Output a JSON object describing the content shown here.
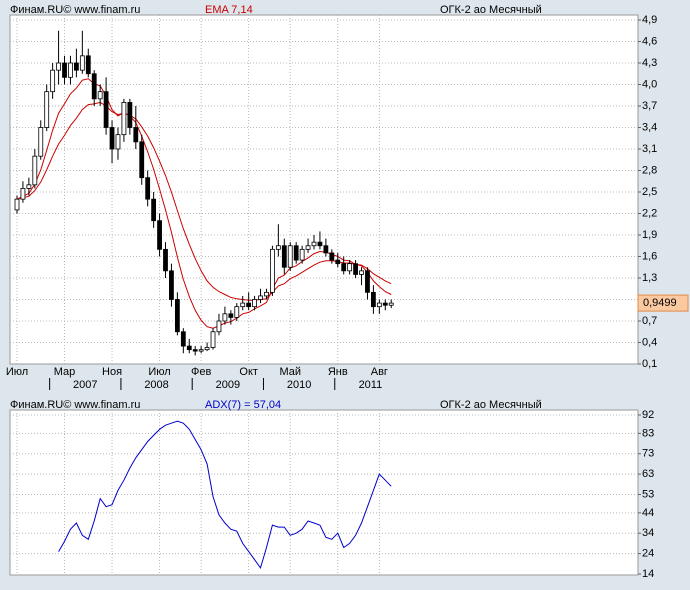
{
  "chart_data": [
    {
      "type": "candlestick",
      "source": "Финам.RU©  www.finam.ru",
      "indicator": "EMA 7,14",
      "instrument": "ОГК-2 ао Месячный",
      "categories": [
        "Июл",
        null,
        null,
        null,
        null,
        null,
        null,
        null,
        "Мар",
        null,
        null,
        null,
        null,
        null,
        null,
        null,
        "Ноя",
        null,
        null,
        null,
        null,
        null,
        null,
        null,
        "Июл",
        null,
        null,
        null,
        null,
        null,
        null,
        "Фев",
        null,
        null,
        null,
        null,
        null,
        null,
        null,
        "Окт",
        null,
        null,
        null,
        null,
        null,
        null,
        "Май",
        null,
        null,
        null,
        null,
        null,
        null,
        null,
        "Янв",
        null,
        null,
        null,
        null,
        null,
        null,
        "Авг",
        null,
        null
      ],
      "years": [
        "2007",
        "2008",
        "2009",
        "2010",
        "2011"
      ],
      "open": [
        2.25,
        2.4,
        2.55,
        2.6,
        3.0,
        3.4,
        3.9,
        4.2,
        4.3,
        4.1,
        4.3,
        4.2,
        4.4,
        4.15,
        3.8,
        3.9,
        3.4,
        3.1,
        3.3,
        3.75,
        3.4,
        3.2,
        2.7,
        2.4,
        2.1,
        1.7,
        1.4,
        1.0,
        0.55,
        0.35,
        0.3,
        0.28,
        0.3,
        0.33,
        0.55,
        0.7,
        0.8,
        0.75,
        0.9,
        0.95,
        0.9,
        1.0,
        1.05,
        1.1,
        1.7,
        1.75,
        1.45,
        1.75,
        1.55,
        1.7,
        1.75,
        1.8,
        1.75,
        1.65,
        1.55,
        1.5,
        1.4,
        1.5,
        1.35,
        1.4,
        1.1,
        0.9,
        0.95,
        0.92
      ],
      "high": [
        2.45,
        2.65,
        2.7,
        3.1,
        3.5,
        4.0,
        4.3,
        4.75,
        4.4,
        4.4,
        4.5,
        4.75,
        4.5,
        4.2,
        4.0,
        4.1,
        3.5,
        3.4,
        3.8,
        3.8,
        3.7,
        3.3,
        2.8,
        2.5,
        2.2,
        1.8,
        1.5,
        1.1,
        0.6,
        0.45,
        0.35,
        0.35,
        0.4,
        0.6,
        0.8,
        0.9,
        0.85,
        0.95,
        1.05,
        1.1,
        1.05,
        1.15,
        1.15,
        1.75,
        2.05,
        1.85,
        1.8,
        1.8,
        1.75,
        1.85,
        1.9,
        1.95,
        1.85,
        1.7,
        1.65,
        1.6,
        1.55,
        1.55,
        1.45,
        1.45,
        1.2,
        1.0,
        1.0,
        1.0
      ],
      "low": [
        2.2,
        2.35,
        2.45,
        2.55,
        2.95,
        3.35,
        3.8,
        4.0,
        4.0,
        4.0,
        4.1,
        4.15,
        4.1,
        3.7,
        3.7,
        3.3,
        2.9,
        2.95,
        3.2,
        3.3,
        3.1,
        2.6,
        2.3,
        2.0,
        1.6,
        1.3,
        0.9,
        0.5,
        0.25,
        0.25,
        0.22,
        0.25,
        0.28,
        0.3,
        0.5,
        0.65,
        0.65,
        0.7,
        0.85,
        0.85,
        0.85,
        0.95,
        1.0,
        1.05,
        1.6,
        1.35,
        1.4,
        1.5,
        1.5,
        1.65,
        1.7,
        1.7,
        1.6,
        1.5,
        1.45,
        1.35,
        1.35,
        1.3,
        1.2,
        1.0,
        0.8,
        0.8,
        0.85,
        0.88
      ],
      "close": [
        2.4,
        2.55,
        2.6,
        3.0,
        3.4,
        3.9,
        4.2,
        4.3,
        4.1,
        4.3,
        4.2,
        4.4,
        4.15,
        3.8,
        3.9,
        3.4,
        3.1,
        3.3,
        3.75,
        3.4,
        3.2,
        2.7,
        2.4,
        2.1,
        1.7,
        1.4,
        1.0,
        0.55,
        0.35,
        0.3,
        0.28,
        0.3,
        0.33,
        0.55,
        0.7,
        0.8,
        0.75,
        0.9,
        0.95,
        0.9,
        1.0,
        1.05,
        1.1,
        1.7,
        1.75,
        1.45,
        1.75,
        1.55,
        1.7,
        1.75,
        1.8,
        1.75,
        1.65,
        1.55,
        1.5,
        1.4,
        1.5,
        1.35,
        1.4,
        1.1,
        0.9,
        0.95,
        0.92,
        0.9499
      ],
      "last_label": "0,9499",
      "color_up": "#ffffff",
      "color_down": "#000000",
      "series": [
        {
          "color": "#cc0000",
          "values": [
            2.4,
            2.44,
            2.48,
            2.61,
            2.81,
            3.08,
            3.36,
            3.6,
            3.73,
            3.87,
            3.95,
            4.06,
            4.08,
            4.01,
            3.98,
            3.84,
            3.65,
            3.56,
            3.61,
            3.56,
            3.47,
            3.28,
            3.06,
            2.82,
            2.54,
            2.25,
            1.94,
            1.59,
            1.28,
            1.04,
            0.85,
            0.71,
            0.62,
            0.6,
            0.63,
            0.67,
            0.69,
            0.74,
            0.8,
            0.82,
            0.87,
            0.91,
            0.96,
            1.15,
            1.3,
            1.34,
            1.44,
            1.47,
            1.53,
            1.58,
            1.64,
            1.67,
            1.66,
            1.63,
            1.6,
            1.55,
            1.54,
            1.49,
            1.47,
            1.38,
            1.26,
            1.18,
            1.11,
            1.07
          ]
        },
        {
          "color": "#cc0000",
          "values": [
            2.4,
            2.42,
            2.44,
            2.52,
            2.64,
            2.81,
            3.0,
            3.17,
            3.29,
            3.43,
            3.53,
            3.65,
            3.72,
            3.73,
            3.75,
            3.7,
            3.62,
            3.58,
            3.6,
            3.57,
            3.52,
            3.41,
            3.28,
            3.12,
            2.93,
            2.73,
            2.5,
            2.24,
            1.99,
            1.77,
            1.57,
            1.4,
            1.26,
            1.17,
            1.11,
            1.07,
            1.03,
            1.01,
            1.0,
            0.99,
            0.99,
            1.0,
            1.01,
            1.1,
            1.19,
            1.22,
            1.29,
            1.33,
            1.38,
            1.43,
            1.48,
            1.52,
            1.54,
            1.54,
            1.53,
            1.51,
            1.51,
            1.49,
            1.48,
            1.43,
            1.36,
            1.31,
            1.26,
            1.22
          ]
        }
      ],
      "ylim": [
        0.1,
        4.9
      ],
      "yticks": [
        {
          "value": 4.9,
          "label": "4,9"
        },
        {
          "value": 4.6,
          "label": "4,6"
        },
        {
          "value": 4.3,
          "label": "4,3"
        },
        {
          "value": 4.0,
          "label": "4,0"
        },
        {
          "value": 3.7,
          "label": "3,7"
        },
        {
          "value": 3.4,
          "label": "3,4"
        },
        {
          "value": 3.1,
          "label": "3,1"
        },
        {
          "value": 2.8,
          "label": "2,8"
        },
        {
          "value": 2.5,
          "label": "2,5"
        },
        {
          "value": 2.2,
          "label": "2,2"
        },
        {
          "value": 1.9,
          "label": "1,9"
        },
        {
          "value": 1.6,
          "label": "1,6"
        },
        {
          "value": 1.3,
          "label": "1,3"
        },
        {
          "value": 1.0,
          "label": "1,0"
        },
        {
          "value": 0.7,
          "label": "0,7"
        },
        {
          "value": 0.4,
          "label": "0,4"
        },
        {
          "value": 0.1,
          "label": "0,1"
        }
      ],
      "grid": true
    },
    {
      "type": "line",
      "source": "Финам.RU©  www.finam.ru",
      "indicator": "ADX(7) = 57,04",
      "instrument": "ОГК-2 ао Месячный",
      "series": [
        {
          "color": "#0000cc",
          "values": [
            null,
            null,
            null,
            null,
            null,
            null,
            null,
            25,
            30,
            36,
            39,
            33,
            31,
            40,
            51,
            47,
            48,
            55,
            60,
            66,
            71,
            75,
            79,
            82,
            85,
            87,
            88,
            89,
            88,
            85,
            80,
            75,
            68,
            52,
            43,
            39,
            36,
            35,
            29,
            25,
            21,
            17,
            27,
            38,
            37,
            37,
            33,
            34,
            36,
            40,
            39,
            38,
            32,
            31,
            34,
            27,
            29,
            33,
            39,
            47,
            55,
            63,
            60,
            57.04
          ]
        }
      ],
      "ylim": [
        14,
        92
      ],
      "yticks": [
        92,
        83,
        73,
        63,
        53,
        44,
        34,
        24,
        14
      ],
      "grid": true
    }
  ]
}
